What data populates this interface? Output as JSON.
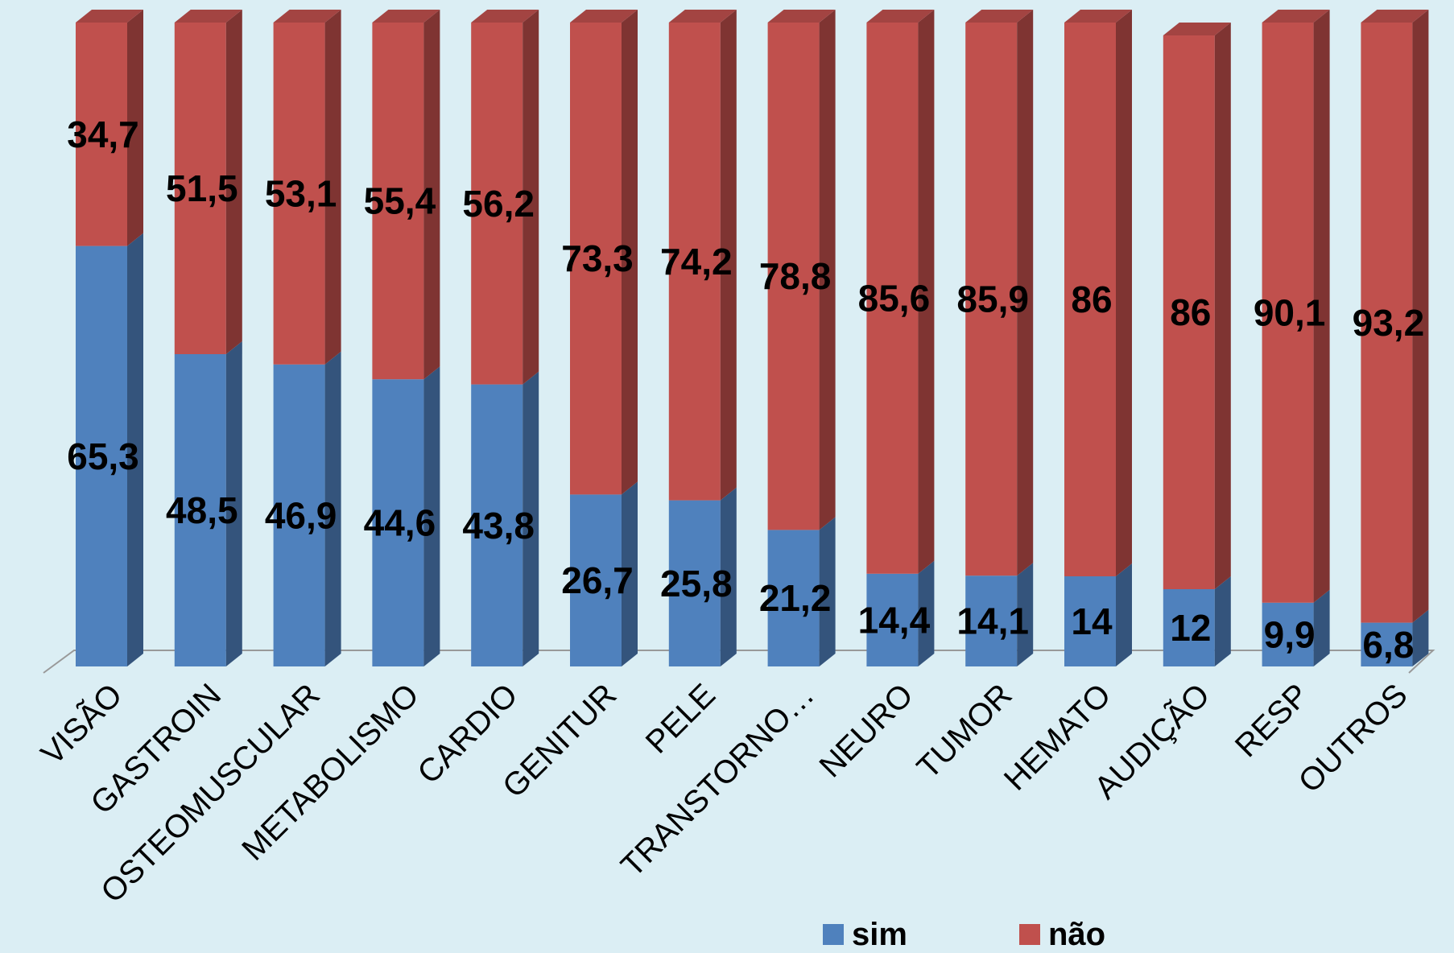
{
  "chart_data": {
    "type": "bar",
    "stacked": true,
    "three_d": true,
    "categories": [
      "VISÃO",
      "GASTROIN",
      "OSTEOMUSCULAR",
      "METABOLISMO",
      "CARDIO",
      "GENITUR",
      "PELE",
      "TRANSTORNO…",
      "NEURO",
      "TUMOR",
      "HEMATO",
      "AUDIÇÃO",
      "RESP",
      "OUTROS"
    ],
    "series": [
      {
        "name": "sim",
        "values": [
          65.3,
          48.5,
          46.9,
          44.6,
          43.8,
          26.7,
          25.8,
          21.2,
          14.4,
          14.1,
          14,
          12,
          9.9,
          6.8
        ],
        "labels": [
          "65,3",
          "48,5",
          "46,9",
          "44,6",
          "43,8",
          "26,7",
          "25,8",
          "21,2",
          "14,4",
          "14,1",
          "14",
          "12",
          "9,9",
          "6,8"
        ]
      },
      {
        "name": "não",
        "values": [
          34.7,
          51.5,
          53.1,
          55.4,
          56.2,
          73.3,
          74.2,
          78.8,
          85.6,
          85.9,
          86,
          86,
          90.1,
          93.2
        ],
        "labels": [
          "34,7",
          "51,5",
          "53,1",
          "55,4",
          "56,2",
          "73,3",
          "74,2",
          "78,8",
          "85,6",
          "85,9",
          "86",
          "86",
          "90,1",
          "93,2"
        ]
      }
    ],
    "ylim": [
      0,
      100
    ],
    "grid": false,
    "legend_position": "bottom",
    "colors": {
      "sim": "#4f81bd",
      "sim_side": "#34547c",
      "sim_top": "#6f99cc",
      "nao": "#c0504d",
      "nao_side": "#7f3432",
      "nao_top": "#a34442",
      "floor_stroke": "#999999",
      "background": "#dbeef4"
    }
  }
}
